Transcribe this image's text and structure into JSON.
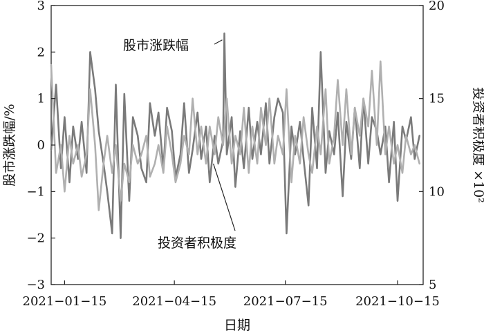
{
  "chart_data": {
    "type": "line",
    "xlabel": "日期",
    "ylabel_left": "股市涨跌幅/%",
    "ylabel_right": "投资者积极度 ×10²",
    "ylim_left": [
      -3,
      3
    ],
    "ylim_right": [
      5,
      20
    ],
    "xlim": [
      "2021-01-04",
      "2021-11-05"
    ],
    "left_ticks": [
      -3,
      -2,
      -1,
      0,
      1,
      2,
      3
    ],
    "right_ticks": [
      5,
      10,
      15,
      20
    ],
    "right_ticks_text": [
      "5",
      "10",
      "15",
      "20"
    ],
    "x_ticks": [
      "2021-01-15",
      "2021-04-15",
      "2021-07-15",
      "2021-10-15"
    ],
    "grid": false,
    "annotations": [
      {
        "text": "股市涨跌幅",
        "series": "股市涨跌幅",
        "target": [
          "2021-05-26",
          2.35
        ]
      },
      {
        "text": "投资者积极度",
        "series": "投资者积极度",
        "target": [
          "2021-05-17",
          11.5
        ]
      }
    ],
    "series": [
      {
        "name": "股市涨跌幅",
        "axis": "left",
        "color": "#7a7a7a",
        "x": [
          "2021-01-04",
          "2021-01-08",
          "2021-01-12",
          "2021-01-15",
          "2021-01-19",
          "2021-01-22",
          "2021-01-26",
          "2021-01-29",
          "2021-02-02",
          "2021-02-05",
          "2021-02-09",
          "2021-02-12",
          "2021-02-16",
          "2021-02-19",
          "2021-02-23",
          "2021-02-26",
          "2021-03-02",
          "2021-03-05",
          "2021-03-09",
          "2021-03-12",
          "2021-03-16",
          "2021-03-19",
          "2021-03-23",
          "2021-03-26",
          "2021-03-30",
          "2021-04-02",
          "2021-04-06",
          "2021-04-09",
          "2021-04-13",
          "2021-04-16",
          "2021-04-20",
          "2021-04-23",
          "2021-04-27",
          "2021-04-30",
          "2021-05-04",
          "2021-05-07",
          "2021-05-11",
          "2021-05-14",
          "2021-05-18",
          "2021-05-21",
          "2021-05-25",
          "2021-05-26",
          "2021-05-28",
          "2021-06-01",
          "2021-06-04",
          "2021-06-08",
          "2021-06-11",
          "2021-06-15",
          "2021-06-18",
          "2021-06-22",
          "2021-06-25",
          "2021-06-29",
          "2021-07-02",
          "2021-07-06",
          "2021-07-09",
          "2021-07-13",
          "2021-07-16",
          "2021-07-20",
          "2021-07-23",
          "2021-07-27",
          "2021-07-30",
          "2021-08-03",
          "2021-08-06",
          "2021-08-10",
          "2021-08-13",
          "2021-08-17",
          "2021-08-20",
          "2021-08-24",
          "2021-08-27",
          "2021-08-31",
          "2021-09-03",
          "2021-09-07",
          "2021-09-10",
          "2021-09-14",
          "2021-09-17",
          "2021-09-21",
          "2021-09-24",
          "2021-09-28",
          "2021-10-01",
          "2021-10-05",
          "2021-10-08",
          "2021-10-12",
          "2021-10-15",
          "2021-10-19",
          "2021-10-22",
          "2021-10-26",
          "2021-10-29",
          "2021-11-02"
        ],
        "values": [
          -0.1,
          1.3,
          -0.5,
          0.6,
          -0.8,
          0.4,
          -0.3,
          0.5,
          -0.6,
          2.0,
          1.2,
          0.3,
          -0.4,
          -1.0,
          -1.9,
          1.3,
          -2.0,
          1.1,
          -1.2,
          0.6,
          0.2,
          -0.5,
          -0.8,
          0.9,
          0.2,
          0.7,
          -0.5,
          0.8,
          0.3,
          -0.7,
          -0.2,
          0.9,
          -0.6,
          -0.1,
          0.7,
          -0.3,
          0.4,
          -0.8,
          0.2,
          -0.4,
          0.1,
          2.4,
          -0.2,
          0.6,
          -0.9,
          0.3,
          -0.5,
          0.8,
          -0.3,
          0.5,
          -0.2,
          0.9,
          -0.4,
          0.6,
          1.0,
          0.7,
          -1.9,
          0.4,
          -0.2,
          0.5,
          -0.3,
          -1.3,
          0.8,
          -0.5,
          2.0,
          -0.6,
          0.3,
          -0.2,
          0.7,
          -1.1,
          0.5,
          -0.3,
          0.8,
          -0.5,
          1.0,
          -0.4,
          0.6,
          0.3,
          -0.2,
          0.4,
          -0.8,
          0.5,
          -1.2,
          0.4,
          0.1,
          0.6,
          -0.3,
          0.2
        ]
      },
      {
        "name": "投资者积极度",
        "axis": "right",
        "color": "#b0b0b0",
        "x": [
          "2021-01-04",
          "2021-01-08",
          "2021-01-12",
          "2021-01-15",
          "2021-01-19",
          "2021-01-22",
          "2021-01-26",
          "2021-01-29",
          "2021-02-02",
          "2021-02-05",
          "2021-02-09",
          "2021-02-12",
          "2021-02-16",
          "2021-02-19",
          "2021-02-23",
          "2021-02-26",
          "2021-03-02",
          "2021-03-05",
          "2021-03-09",
          "2021-03-12",
          "2021-03-16",
          "2021-03-19",
          "2021-03-23",
          "2021-03-26",
          "2021-03-30",
          "2021-04-02",
          "2021-04-06",
          "2021-04-09",
          "2021-04-13",
          "2021-04-16",
          "2021-04-20",
          "2021-04-23",
          "2021-04-27",
          "2021-04-30",
          "2021-05-04",
          "2021-05-07",
          "2021-05-11",
          "2021-05-14",
          "2021-05-18",
          "2021-05-21",
          "2021-05-25",
          "2021-05-28",
          "2021-06-01",
          "2021-06-04",
          "2021-06-08",
          "2021-06-11",
          "2021-06-15",
          "2021-06-18",
          "2021-06-22",
          "2021-06-25",
          "2021-06-29",
          "2021-07-02",
          "2021-07-06",
          "2021-07-09",
          "2021-07-13",
          "2021-07-16",
          "2021-07-20",
          "2021-07-23",
          "2021-07-27",
          "2021-07-30",
          "2021-08-03",
          "2021-08-06",
          "2021-08-10",
          "2021-08-13",
          "2021-08-17",
          "2021-08-20",
          "2021-08-24",
          "2021-08-27",
          "2021-08-31",
          "2021-09-03",
          "2021-09-07",
          "2021-09-10",
          "2021-09-14",
          "2021-09-17",
          "2021-09-21",
          "2021-09-24",
          "2021-09-28",
          "2021-10-01",
          "2021-10-05",
          "2021-10-08",
          "2021-10-12",
          "2021-10-15",
          "2021-10-19",
          "2021-10-22",
          "2021-10-26",
          "2021-10-29",
          "2021-11-02"
        ],
        "values": [
          16.8,
          11.0,
          12.5,
          10.0,
          13.0,
          11.5,
          12.5,
          10.8,
          12.0,
          15.5,
          12.5,
          9.0,
          11.5,
          13.0,
          11.0,
          12.5,
          9.5,
          11.5,
          10.5,
          12.5,
          11.5,
          12.0,
          13.0,
          10.8,
          11.5,
          12.5,
          11.0,
          13.5,
          12.0,
          10.5,
          11.5,
          13.0,
          12.0,
          15.0,
          12.0,
          13.5,
          11.5,
          13.5,
          12.0,
          14.0,
          12.5,
          15.0,
          11.5,
          13.0,
          12.0,
          14.5,
          11.0,
          13.5,
          11.5,
          14.5,
          12.5,
          15.0,
          11.5,
          13.0,
          12.0,
          15.5,
          10.5,
          13.0,
          11.5,
          14.0,
          12.0,
          11.0,
          13.5,
          12.0,
          15.5,
          11.5,
          13.0,
          16.0,
          12.5,
          15.5,
          12.0,
          14.5,
          13.0,
          15.0,
          13.5,
          16.5,
          12.5,
          17.0,
          12.0,
          13.5,
          11.5,
          12.5,
          11.0,
          13.0,
          12.0,
          12.5,
          11.5
        ]
      }
    ]
  }
}
